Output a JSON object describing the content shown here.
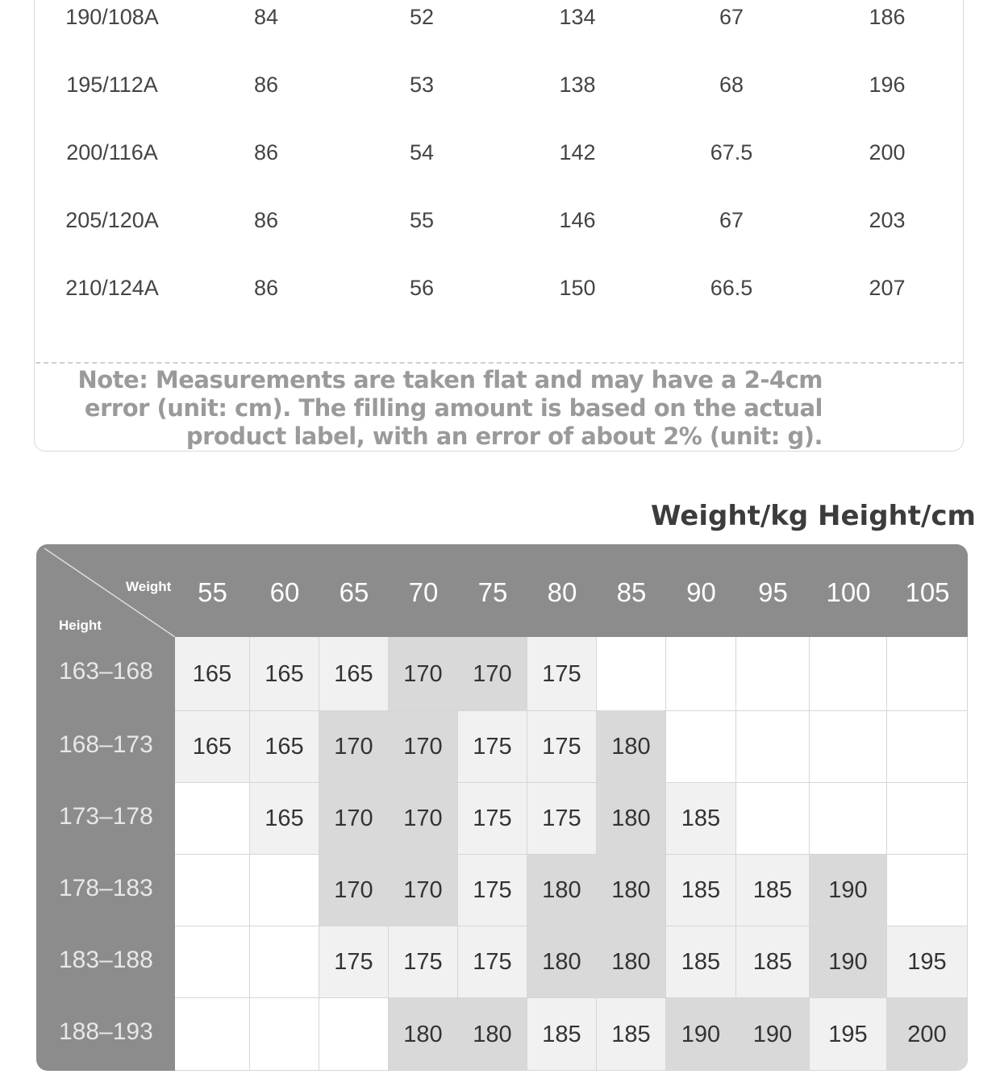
{
  "size_table": {
    "rows": [
      [
        "190/108A",
        "84",
        "52",
        "134",
        "67",
        "186"
      ],
      [
        "195/112A",
        "86",
        "53",
        "138",
        "68",
        "196"
      ],
      [
        "200/116A",
        "86",
        "54",
        "142",
        "67.5",
        "200"
      ],
      [
        "205/120A",
        "86",
        "55",
        "146",
        "67",
        "203"
      ],
      [
        "210/124A",
        "86",
        "56",
        "150",
        "66.5",
        "207"
      ]
    ],
    "note_lines": [
      "Note: Measurements are taken flat and may have a 2-4cm",
      "error (unit: cm). The filling amount is based on the actual",
      "product label, with an error of about 2% (unit: g)."
    ]
  },
  "recommend": {
    "title": "Weight/kg Height/cm",
    "corner_weight": "Weight",
    "corner_height": "Height",
    "weights": [
      "55",
      "60",
      "65",
      "70",
      "75",
      "80",
      "85",
      "90",
      "95",
      "100",
      "105"
    ],
    "heights": [
      "163–168",
      "168–173",
      "173–178",
      "178–183",
      "183–188",
      "188–193"
    ],
    "cells": [
      [
        "165",
        "165",
        "165",
        "170",
        "170",
        "175",
        "",
        "",
        "",
        "",
        ""
      ],
      [
        "165",
        "165",
        "170",
        "170",
        "175",
        "175",
        "180",
        "",
        "",
        "",
        ""
      ],
      [
        "",
        "165",
        "170",
        "170",
        "175",
        "175",
        "180",
        "185",
        "",
        "",
        ""
      ],
      [
        "",
        "",
        "170",
        "170",
        "175",
        "180",
        "180",
        "185",
        "185",
        "190",
        ""
      ],
      [
        "",
        "",
        "175",
        "175",
        "175",
        "180",
        "180",
        "185",
        "185",
        "190",
        "195"
      ],
      [
        "",
        "",
        "",
        "180",
        "180",
        "185",
        "185",
        "190",
        "190",
        "195",
        "200"
      ]
    ],
    "shades": [
      [
        1,
        1,
        1,
        2,
        2,
        1,
        0,
        0,
        0,
        0,
        0
      ],
      [
        1,
        1,
        2,
        2,
        1,
        1,
        2,
        0,
        0,
        0,
        0
      ],
      [
        0,
        1,
        2,
        2,
        1,
        1,
        2,
        1,
        0,
        0,
        0
      ],
      [
        0,
        0,
        2,
        2,
        1,
        2,
        2,
        1,
        1,
        2,
        0
      ],
      [
        0,
        0,
        1,
        1,
        1,
        2,
        2,
        1,
        1,
        2,
        1
      ],
      [
        0,
        0,
        0,
        2,
        2,
        1,
        1,
        2,
        2,
        1,
        2
      ]
    ],
    "colors": {
      "header": "#8c8c8c",
      "white": "#ffffff",
      "light": "#f1f1f1",
      "dark": "#d9d9d9"
    }
  }
}
